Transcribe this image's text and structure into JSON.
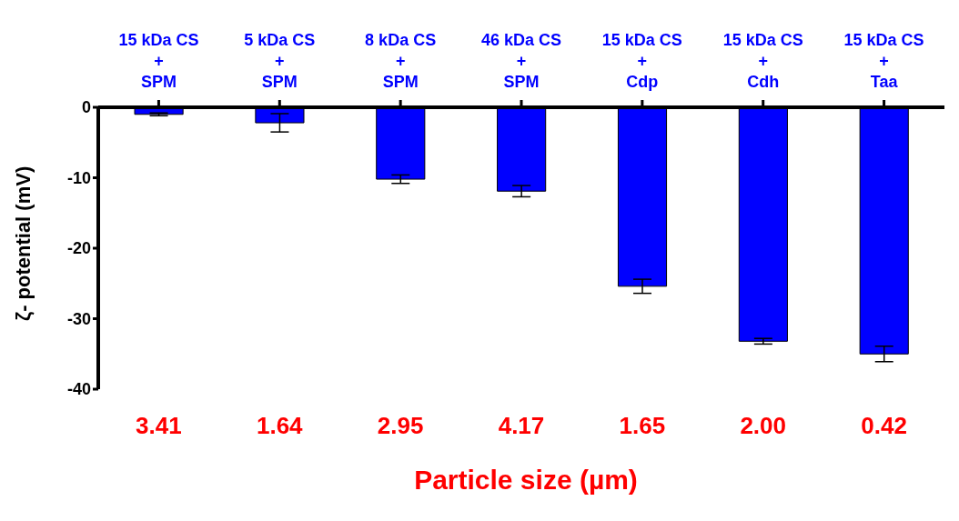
{
  "chart_data": {
    "type": "bar",
    "categories": [
      "15 kDa CS\n+\nSPM",
      "5 kDa CS\n+\nSPM",
      "8 kDa CS\n+\nSPM",
      "46 kDa CS\n+\nSPM",
      "15 kDa CS\n+\nCdp",
      "15 kDa CS\n+\nCdh",
      "15 kDa CS\n+\nTaa"
    ],
    "values": [
      -1.0,
      -2.2,
      -10.2,
      -11.9,
      -25.4,
      -33.2,
      -35.0
    ],
    "errors": [
      0.2,
      1.3,
      0.6,
      0.8,
      1.0,
      0.4,
      1.1
    ],
    "color": "#0000ff",
    "ylim": [
      -40,
      0
    ],
    "yticks": [
      -40,
      -30,
      -20,
      -10,
      0
    ],
    "ylabel": "ζ- potential (mV)",
    "xlabel": "Particle size (µm)",
    "annotations": [
      "3.41",
      "1.64",
      "2.95",
      "4.17",
      "1.65",
      "2.00",
      "0.42"
    ],
    "grid": false,
    "legend": false
  }
}
